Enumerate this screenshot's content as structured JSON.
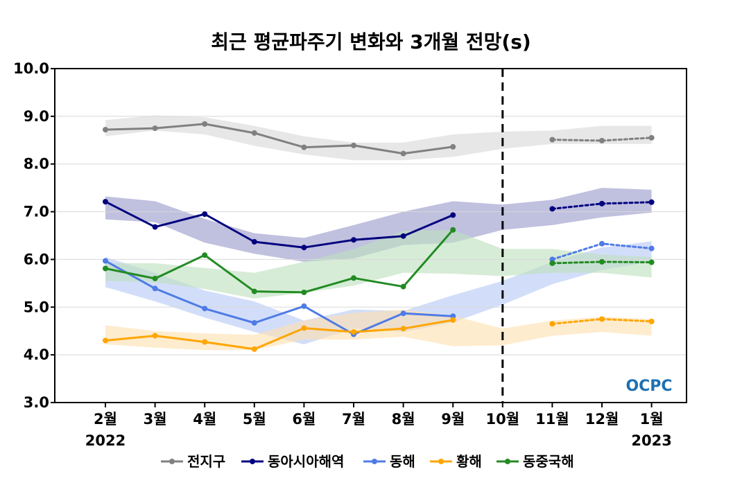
{
  "chart_data": {
    "type": "line",
    "title": "최근 평균파주기 변화와 3개월 전망(s)",
    "categories": [
      "2월",
      "3월",
      "4월",
      "5월",
      "6월",
      "7월",
      "8월",
      "9월",
      "10월",
      "11월",
      "12월",
      "1월"
    ],
    "year_labels": [
      {
        "category": "2월",
        "year": "2022"
      },
      {
        "category": "1월",
        "year": "2023"
      }
    ],
    "y_ticks": [
      "3.0",
      "4.0",
      "5.0",
      "6.0",
      "7.0",
      "8.0",
      "9.0",
      "10.0"
    ],
    "ylim": [
      3.0,
      10.0
    ],
    "grid": "horizontal",
    "forecast_start_category": "10월",
    "legend_position": "bottom",
    "watermark": "OCPC",
    "series": [
      {
        "name": "전지구",
        "color": "#808080",
        "band_color": "#d9d9d9",
        "observed": [
          8.72,
          8.75,
          8.84,
          8.65,
          8.35,
          8.39,
          8.22,
          8.36
        ],
        "forecast": [
          8.51,
          8.49,
          8.55
        ],
        "band_upper": [
          8.92,
          9.02,
          8.98,
          8.8,
          8.58,
          8.45,
          8.45,
          8.62,
          8.68,
          8.7,
          8.8,
          8.8
        ],
        "band_lower": [
          8.58,
          8.7,
          8.62,
          8.38,
          8.2,
          8.08,
          8.08,
          8.15,
          8.32,
          8.42,
          8.42,
          8.42
        ]
      },
      {
        "name": "동아시아해역",
        "color": "#00007f",
        "band_color": "#9999cc",
        "observed": [
          7.21,
          6.68,
          6.95,
          6.37,
          6.25,
          6.41,
          6.49,
          6.93
        ],
        "forecast": [
          7.06,
          7.17,
          7.2
        ],
        "band_upper": [
          7.32,
          7.22,
          6.85,
          6.55,
          6.45,
          6.72,
          7.0,
          7.22,
          7.15,
          7.25,
          7.5,
          7.46
        ],
        "band_lower": [
          6.84,
          6.78,
          6.35,
          6.12,
          5.95,
          6.02,
          6.3,
          6.35,
          6.62,
          6.72,
          6.88,
          6.98
        ]
      },
      {
        "name": "동해",
        "color": "#4f7be6",
        "band_color": "#b7c9f5",
        "observed": [
          5.97,
          5.39,
          4.97,
          4.67,
          5.02,
          4.43,
          4.87,
          4.81
        ],
        "forecast": [
          6.0,
          6.33,
          6.23
        ],
        "band_upper": [
          6.05,
          5.72,
          5.35,
          5.12,
          4.72,
          4.95,
          4.92,
          5.25,
          5.55,
          5.95,
          6.25,
          6.38
        ],
        "band_lower": [
          5.42,
          5.12,
          4.78,
          4.48,
          4.22,
          4.55,
          4.48,
          4.68,
          5.05,
          5.48,
          5.78,
          5.95
        ]
      },
      {
        "name": "황해",
        "color": "#ffa500",
        "band_color": "#fde0b0",
        "observed": [
          4.3,
          4.4,
          4.27,
          4.12,
          4.56,
          4.48,
          4.55,
          4.73
        ],
        "forecast": [
          4.65,
          4.75,
          4.7
        ],
        "band_upper": [
          4.62,
          4.5,
          4.45,
          4.42,
          4.72,
          4.88,
          4.95,
          4.82,
          4.55,
          4.72,
          4.8,
          4.75
        ],
        "band_lower": [
          4.22,
          4.15,
          4.1,
          4.1,
          4.32,
          4.32,
          4.38,
          4.18,
          4.2,
          4.4,
          4.48,
          4.4
        ]
      },
      {
        "name": "동중국해",
        "color": "#228b22",
        "band_color": "#bfe0bf",
        "observed": [
          5.81,
          5.6,
          6.09,
          5.33,
          5.31,
          5.61,
          5.43,
          6.62
        ],
        "forecast": [
          5.92,
          5.95,
          5.94
        ],
        "band_upper": [
          5.92,
          5.92,
          5.82,
          5.72,
          5.95,
          6.22,
          6.6,
          6.62,
          6.22,
          6.22,
          6.1,
          6.05
        ],
        "band_lower": [
          5.55,
          5.52,
          5.38,
          5.18,
          5.3,
          5.45,
          5.72,
          5.7,
          5.65,
          5.72,
          5.72,
          5.62
        ]
      }
    ]
  }
}
